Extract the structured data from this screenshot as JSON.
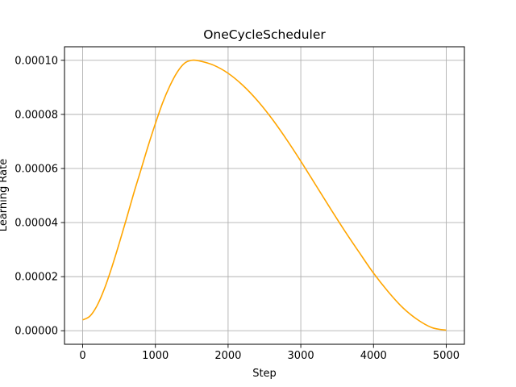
{
  "chart_data": {
    "type": "line",
    "title": "OneCycleScheduler",
    "xlabel": "Step",
    "ylabel": "Learning Rate",
    "xlim": [
      -250,
      5250
    ],
    "ylim": [
      -5e-06,
      0.000105
    ],
    "xticks": [
      0,
      1000,
      2000,
      3000,
      4000,
      5000
    ],
    "xtick_labels": [
      "0",
      "1000",
      "2000",
      "3000",
      "4000",
      "5000"
    ],
    "yticks": [
      0,
      2e-05,
      4e-05,
      6e-05,
      8e-05,
      0.0001
    ],
    "ytick_labels": [
      "0.00000",
      "0.00002",
      "0.00004",
      "0.00006",
      "0.00008",
      "0.00010"
    ],
    "grid": true,
    "line_color": "#ffa500",
    "grid_color": "#b0b0b0",
    "series": [
      {
        "x": [
          0,
          100,
          200,
          300,
          400,
          500,
          600,
          700,
          800,
          900,
          1000,
          1100,
          1200,
          1300,
          1400,
          1500,
          1600,
          1800,
          2000,
          2200,
          2400,
          2600,
          2800,
          3000,
          3200,
          3400,
          3600,
          3800,
          4000,
          4200,
          4400,
          4600,
          4800,
          5000
        ],
        "values": [
          4e-06,
          5.4e-06,
          9.4e-06,
          1.56e-05,
          2.34e-05,
          3.21e-05,
          4.12e-05,
          5.06e-05,
          5.94e-05,
          6.83e-05,
          7.66e-05,
          8.43e-05,
          9.06e-05,
          9.56e-05,
          9.89e-05,
          0.0001,
          9.98e-05,
          9.82e-05,
          9.52e-05,
          9.08e-05,
          8.52e-05,
          7.85e-05,
          7.09e-05,
          6.27e-05,
          5.41e-05,
          4.55e-05,
          3.71e-05,
          2.91e-05,
          2.13e-05,
          1.45e-05,
          8.6e-06,
          4.2e-06,
          1.2e-06,
          2e-07
        ]
      }
    ]
  }
}
